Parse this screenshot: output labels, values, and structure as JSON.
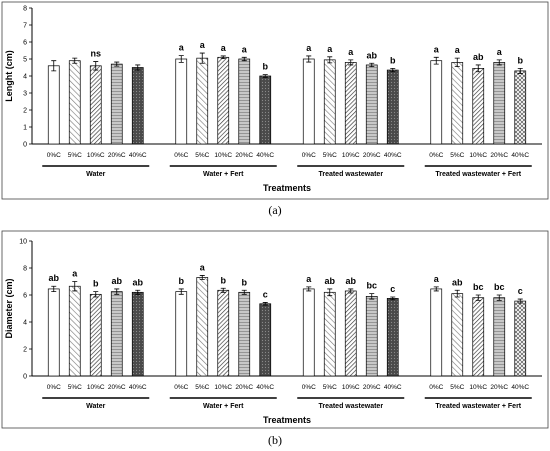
{
  "chart_data": [
    {
      "type": "bar",
      "panel_tag": "(a)",
      "ylabel": "Lenght (cm)",
      "xlabel": "Treatments",
      "ylim": [
        0,
        8
      ],
      "yticks": [
        0,
        1,
        2,
        3,
        4,
        5,
        6,
        7,
        8
      ],
      "categories": [
        "0%C",
        "5%C",
        "10%C",
        "20%C",
        "40%C"
      ],
      "groups": [
        {
          "name": "Water",
          "values": [
            4.6,
            4.9,
            4.6,
            4.7,
            4.5
          ],
          "errors": [
            0.3,
            0.15,
            0.25,
            0.12,
            0.15
          ],
          "letters": [
            "",
            "",
            "ns",
            "",
            ""
          ]
        },
        {
          "name": "Water + Fert",
          "values": [
            5.0,
            5.05,
            5.1,
            5.0,
            4.0
          ],
          "errors": [
            0.2,
            0.3,
            0.08,
            0.1,
            0.08
          ],
          "letters": [
            "a",
            "a",
            "a",
            "a",
            "b"
          ]
        },
        {
          "name": "Treated wastewater",
          "values": [
            5.0,
            4.95,
            4.8,
            4.65,
            4.35
          ],
          "errors": [
            0.18,
            0.18,
            0.15,
            0.1,
            0.1
          ],
          "letters": [
            "a",
            "a",
            "a",
            "ab",
            "b"
          ]
        },
        {
          "name": "Treated wastewater + Fert",
          "values": [
            4.9,
            4.8,
            4.45,
            4.8,
            4.3
          ],
          "errors": [
            0.2,
            0.25,
            0.2,
            0.15,
            0.15
          ],
          "letters": [
            "a",
            "a",
            "ab",
            "a",
            "b"
          ]
        }
      ]
    },
    {
      "type": "bar",
      "panel_tag": "(b)",
      "ylabel": "Diameter (cm)",
      "xlabel": "Treatments",
      "ylim": [
        0,
        10
      ],
      "yticks": [
        0,
        2,
        4,
        6,
        8,
        10
      ],
      "categories": [
        "0%C",
        "5%C",
        "10%C",
        "20%C",
        "40%C"
      ],
      "groups": [
        {
          "name": "Water",
          "values": [
            6.45,
            6.65,
            6.05,
            6.25,
            6.2
          ],
          "errors": [
            0.2,
            0.35,
            0.2,
            0.2,
            0.15
          ],
          "letters": [
            "ab",
            "a",
            "b",
            "ab",
            "ab"
          ]
        },
        {
          "name": "Water + Fert",
          "values": [
            6.25,
            7.3,
            6.35,
            6.2,
            5.35
          ],
          "errors": [
            0.2,
            0.15,
            0.15,
            0.15,
            0.1
          ],
          "letters": [
            "b",
            "a",
            "b",
            "b",
            "c"
          ]
        },
        {
          "name": "Treated wastewater",
          "values": [
            6.45,
            6.2,
            6.3,
            5.9,
            5.75
          ],
          "errors": [
            0.15,
            0.25,
            0.15,
            0.2,
            0.1
          ],
          "letters": [
            "a",
            "ab",
            "ab",
            "bc",
            "c"
          ]
        },
        {
          "name": "Treated wastewater + Fert",
          "values": [
            6.45,
            6.1,
            5.8,
            5.8,
            5.55
          ],
          "errors": [
            0.15,
            0.25,
            0.2,
            0.2,
            0.15
          ],
          "letters": [
            "a",
            "ab",
            "bc",
            "bc",
            "c"
          ]
        }
      ]
    }
  ],
  "bar_styles": [
    {
      "pattern": "plain",
      "fill": "#ffffff"
    },
    {
      "pattern": "diagonal",
      "fill": "#ffffff"
    },
    {
      "pattern": "stripes",
      "fill": "#ffffff"
    },
    {
      "pattern": "dots",
      "fill": "#bdbdbd"
    },
    {
      "pattern": "dark",
      "fill": "#555555"
    }
  ]
}
